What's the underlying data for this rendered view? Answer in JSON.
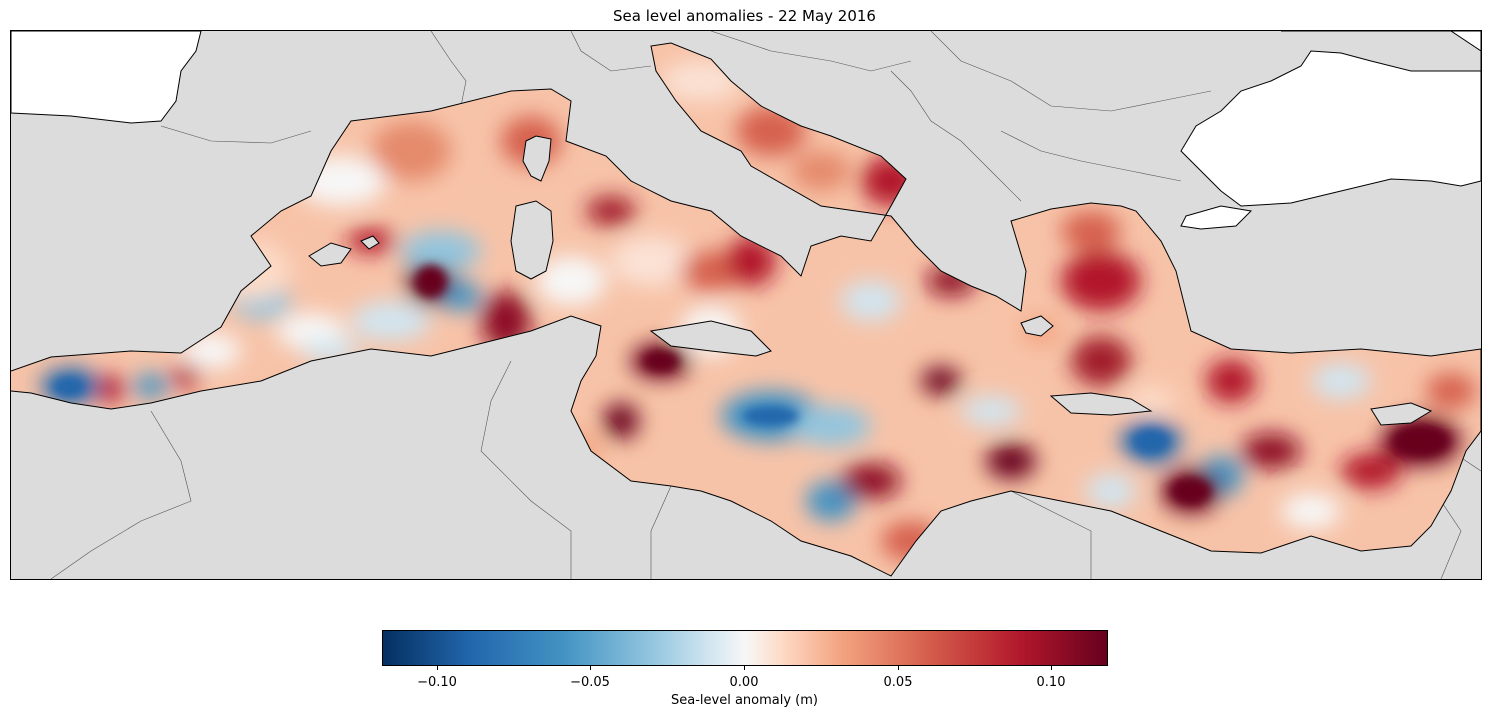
{
  "title": "Sea level anomalies - 22 May 2016",
  "colorbar": {
    "label": "Sea-level anomaly (m)",
    "min": -0.12,
    "max": 0.12,
    "cmap": "RdBu_r",
    "ticks": [
      "−0.10",
      "−0.05",
      "0.00",
      "0.05",
      "0.10"
    ],
    "tick_values": [
      -0.1,
      -0.05,
      0.0,
      0.05,
      0.1
    ]
  },
  "colors": {
    "land": "#dcdcdc",
    "outside": "#ffffff",
    "neutral": "#f7f7f7",
    "positive_strong": "#67001f",
    "positive": "#d6604d",
    "negative": "#2166ac",
    "negative_strong": "#053061"
  }
}
